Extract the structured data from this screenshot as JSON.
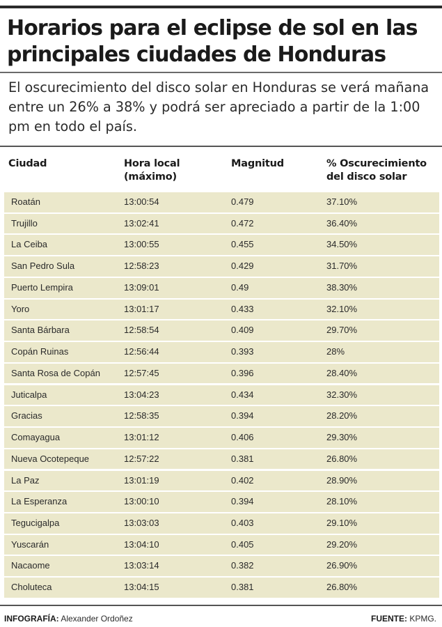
{
  "title": "Horarios para el eclipse de sol en las principales ciudades de Honduras",
  "subtitle": "El oscurecimiento del disco solar en Honduras se verá mañana entre un 26% a 38% y podrá ser apreciado a partir de la 1:00 pm en todo el país.",
  "table": {
    "headers": [
      "Ciudad",
      "Hora local (máximo)",
      "Magnitud",
      "% Oscurecimiento del disco solar"
    ],
    "rows": [
      [
        "Roatán",
        "13:00:54",
        "0.479",
        "37.10%"
      ],
      [
        "Trujillo",
        "13:02:41",
        "0.472",
        "36.40%"
      ],
      [
        "La Ceiba",
        "13:00:55",
        "0.455",
        "34.50%"
      ],
      [
        "San Pedro Sula",
        "12:58:23",
        "0.429",
        "31.70%"
      ],
      [
        "Puerto Lempira",
        "13:09:01",
        "0.49",
        "38.30%"
      ],
      [
        "Yoro",
        "13:01:17",
        "0.433",
        "32.10%"
      ],
      [
        "Santa Bárbara",
        "12:58:54",
        "0.409",
        "29.70%"
      ],
      [
        "Copán Ruinas",
        "12:56:44",
        "0.393",
        "28%"
      ],
      [
        "Santa Rosa de Copán",
        "12:57:45",
        "0.396",
        "28.40%"
      ],
      [
        "Juticalpa",
        "13:04:23",
        "0.434",
        "32.30%"
      ],
      [
        "Gracias",
        "12:58:35",
        "0.394",
        "28.20%"
      ],
      [
        "Comayagua",
        "13:01:12",
        "0.406",
        "29.30%"
      ],
      [
        "Nueva Ocotepeque",
        "12:57:22",
        "0.381",
        "26.80%"
      ],
      [
        "La Paz",
        "13:01:19",
        "0.402",
        "28.90%"
      ],
      [
        "La Esperanza",
        "13:00:10",
        "0.394",
        "28.10%"
      ],
      [
        "Tegucigalpa",
        "13:03:03",
        "0.403",
        "29.10%"
      ],
      [
        "Yuscarán",
        "13:04:10",
        "0.405",
        "29.20%"
      ],
      [
        "Nacaome",
        "13:03:14",
        "0.382",
        "26.90%"
      ],
      [
        "Choluteca",
        "13:04:15",
        "0.381",
        "26.80%"
      ]
    ]
  },
  "footer": {
    "credit_label": "INFOGRAFÍA:",
    "credit_name": "Alexander Ordoñez",
    "source_label": "FUENTE:",
    "source_name": "KPMG."
  },
  "colors": {
    "row_background": "#ebe8cb",
    "text": "#1a1a1a"
  }
}
